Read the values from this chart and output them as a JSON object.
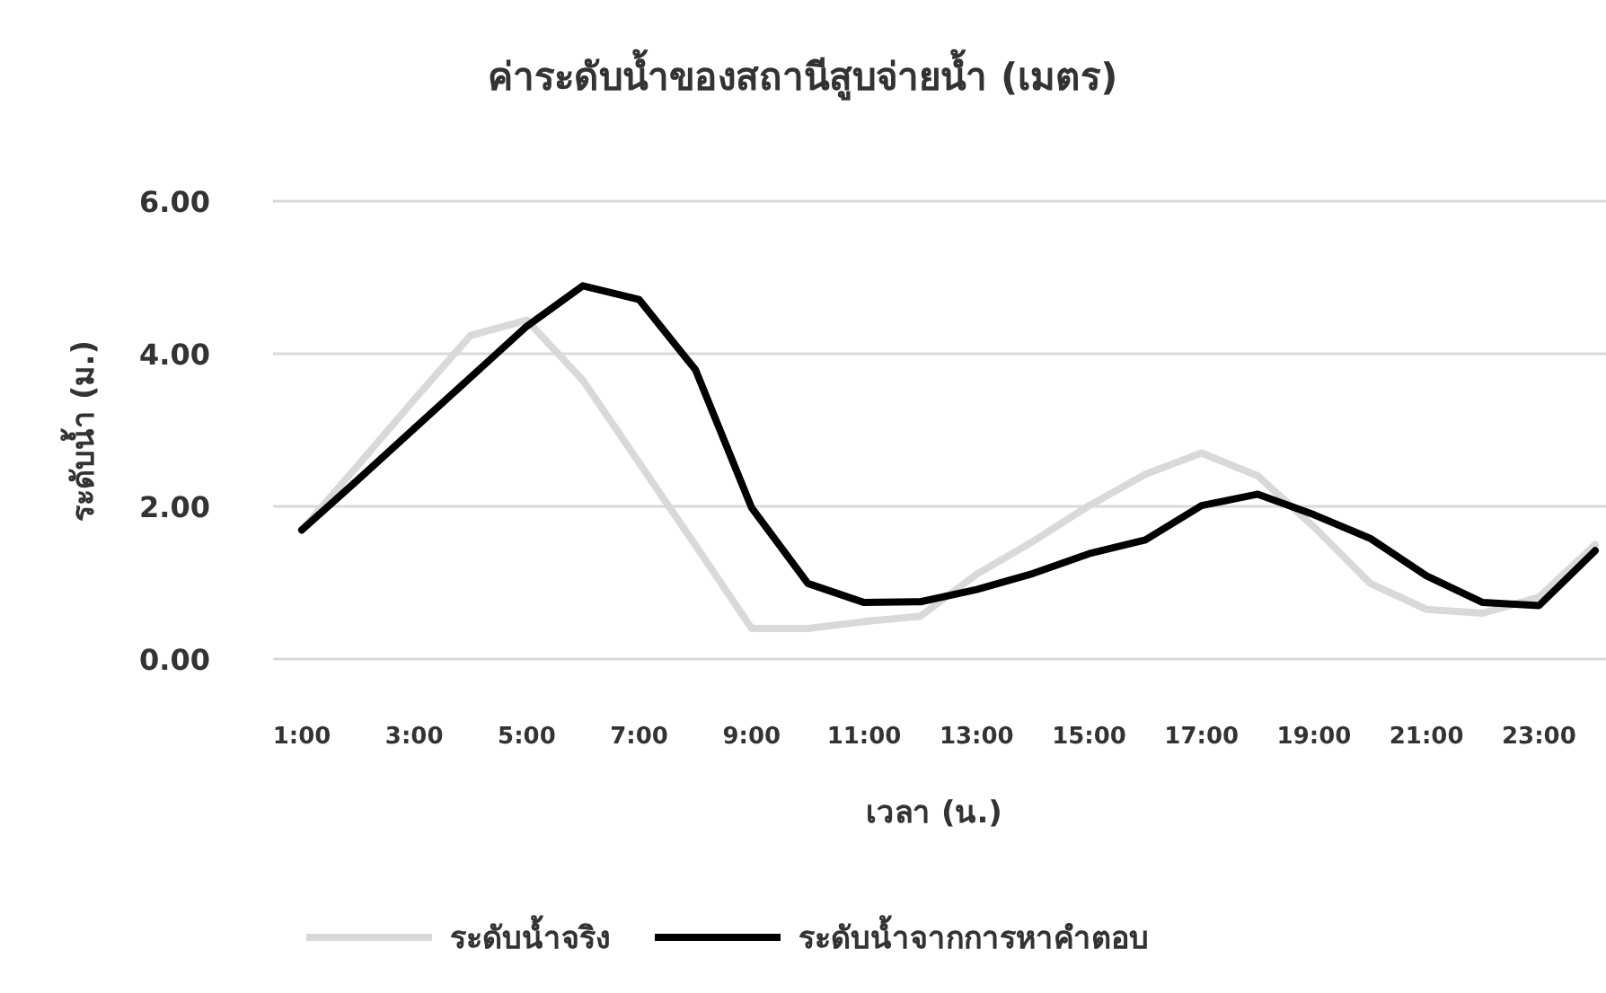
{
  "chart_data": {
    "type": "line",
    "title": "ค่าระดับน้ำของสถานีสูบจ่ายน้ำ (เมตร)",
    "xlabel": "เวลา (น.)",
    "ylabel": "ระดับน้ำ (ม.)",
    "categories": [
      "1:00",
      null,
      "3:00",
      null,
      "5:00",
      null,
      "7:00",
      null,
      "9:00",
      null,
      "11:00",
      null,
      "13:00",
      null,
      "15:00",
      null,
      "17:00",
      null,
      "19:00",
      null,
      "21:00",
      null,
      "23:00",
      null
    ],
    "series": [
      {
        "name": "ระดับน้ำจริง",
        "color": "#d9d9d9",
        "values": [
          1.69,
          2.54,
          3.4,
          4.24,
          4.44,
          3.65,
          2.57,
          1.49,
          0.4,
          0.4,
          0.49,
          0.56,
          1.11,
          1.54,
          2.01,
          2.42,
          2.7,
          2.4,
          1.73,
          0.99,
          0.65,
          0.6,
          0.81,
          1.5
        ]
      },
      {
        "name": "ระดับน้ำจากการหาคำตอบ",
        "color": "#000000",
        "values": [
          1.69,
          2.35,
          3.02,
          3.69,
          4.36,
          4.89,
          4.71,
          3.79,
          1.98,
          0.99,
          0.74,
          0.75,
          0.91,
          1.12,
          1.38,
          1.56,
          2.01,
          2.16,
          1.89,
          1.58,
          1.09,
          0.74,
          0.7,
          1.42
        ]
      }
    ],
    "ylim": [
      0,
      6
    ],
    "yticks": [
      {
        "value": 0,
        "label": "0.00"
      },
      {
        "value": 2,
        "label": "2.00"
      },
      {
        "value": 4,
        "label": "4.00"
      },
      {
        "value": 6,
        "label": "6.00"
      }
    ],
    "grid": "y",
    "legend": "bottom",
    "marker": "none",
    "line_style": "solid"
  }
}
